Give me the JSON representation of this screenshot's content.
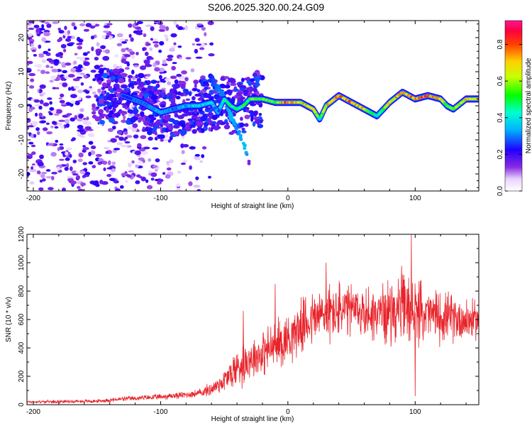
{
  "colors": {
    "snr_line": "#e8232a",
    "axis": "#000000",
    "background": "#ffffff"
  },
  "chart_data": [
    {
      "type": "heatmap",
      "title": "S206.2025.320.00.24.G09",
      "xlabel": "Height of straight line (km)",
      "ylabel": "Frequency (Hz)",
      "xlim": [
        -205,
        150
      ],
      "ylim": [
        -25,
        25
      ],
      "xticks": [
        -200,
        -100,
        0,
        100
      ],
      "xtick_labels": [
        "-200",
        "-100",
        "0",
        "100"
      ],
      "yticks": [
        -20,
        -10,
        0,
        10,
        20
      ],
      "ytick_labels": [
        "-20",
        "-10",
        "0",
        "10",
        "20"
      ],
      "colorbar": {
        "label": "Normalized spectral amplitude",
        "range": [
          0,
          0.93
        ],
        "ticks": [
          0.0,
          0.2,
          0.4,
          0.6,
          0.8
        ],
        "tick_labels": [
          "0.0",
          "0.2",
          "0.4",
          "0.6",
          "0.8"
        ],
        "colormap": "rainbow"
      },
      "ridge": {
        "description": "dominant frequency trace vs height",
        "x": [
          -130,
          -115,
          -100,
          -90,
          -80,
          -70,
          -60,
          -55,
          -50,
          -45,
          -40,
          -35,
          -30,
          -20,
          -10,
          0,
          10,
          20,
          25,
          30,
          40,
          50,
          60,
          65,
          70,
          80,
          90,
          100,
          110,
          120,
          125,
          130,
          140,
          150
        ],
        "y": [
          3,
          1,
          -2,
          -1,
          0,
          0,
          1,
          -2,
          2,
          0,
          -1,
          0,
          2,
          2,
          1,
          1,
          1,
          -1,
          -4,
          0,
          3,
          1,
          -1,
          -2,
          -3,
          1,
          4,
          2,
          3,
          2,
          0,
          -1,
          2,
          2
        ],
        "amplitude": [
          0.25,
          0.3,
          0.35,
          0.3,
          0.35,
          0.4,
          0.4,
          0.3,
          0.45,
          0.5,
          0.45,
          0.5,
          0.55,
          0.55,
          0.6,
          0.85,
          0.7,
          0.75,
          0.45,
          0.7,
          0.75,
          0.8,
          0.7,
          0.5,
          0.45,
          0.7,
          0.75,
          0.8,
          0.85,
          0.75,
          0.55,
          0.55,
          0.75,
          0.7
        ]
      },
      "branch": {
        "description": "secondary trace descending toward negative frequency",
        "x": [
          -60,
          -55,
          -50,
          -45,
          -40,
          -35,
          -33,
          -30
        ],
        "y": [
          8,
          5,
          2,
          -3,
          -7,
          -11,
          -13,
          -18
        ],
        "amplitude": [
          0.25,
          0.3,
          0.3,
          0.35,
          0.3,
          0.35,
          0.35,
          0.1
        ]
      },
      "noise_region": {
        "description": "scattered low-amplitude spectral content at low heights",
        "x_range": [
          -205,
          -110
        ],
        "y_range": [
          -25,
          25
        ],
        "amplitude_range": [
          0.05,
          0.25
        ]
      }
    },
    {
      "type": "line",
      "xlabel": "Height of straight line (km)",
      "ylabel": "SNR (10 * v/v)",
      "xlim": [
        -205,
        150
      ],
      "ylim": [
        0,
        1200
      ],
      "xticks": [
        -200,
        -100,
        0,
        100
      ],
      "xtick_labels": [
        "-200",
        "-100",
        "0",
        "100"
      ],
      "yticks": [
        0,
        200,
        400,
        600,
        800,
        1000,
        1200
      ],
      "ytick_labels": [
        "0",
        "200",
        "400",
        "600",
        "800",
        "1000",
        "1200"
      ],
      "series": [
        {
          "name": "SNR",
          "envelope": {
            "x": [
              -205,
              -150,
              -130,
              -100,
              -80,
              -70,
              -60,
              -50,
              -40,
              -35,
              -30,
              -20,
              -10,
              0,
              10,
              20,
              30,
              40,
              50,
              60,
              70,
              80,
              90,
              100,
              110,
              120,
              130,
              140,
              150
            ],
            "mean": [
              20,
              25,
              40,
              55,
              70,
              80,
              110,
              170,
              260,
              300,
              330,
              360,
              420,
              470,
              550,
              610,
              640,
              660,
              660,
              650,
              640,
              660,
              680,
              650,
              640,
              620,
              610,
              600,
              590
            ],
            "spread": [
              12,
              15,
              20,
              25,
              30,
              35,
              60,
              100,
              180,
              200,
              170,
              190,
              220,
              220,
              220,
              240,
              250,
              250,
              230,
              220,
              240,
              260,
              320,
              280,
              220,
              220,
              200,
              190,
              150
            ]
          },
          "notable": {
            "x": [
              -35,
              -10,
              30,
              97,
              100
            ],
            "y": [
              660,
              850,
              1000,
              1200,
              60
            ]
          }
        }
      ]
    }
  ]
}
